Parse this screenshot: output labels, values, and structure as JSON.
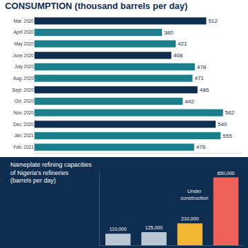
{
  "chart_data": [
    {
      "type": "bar",
      "title": "CONSUMPTION (thousand barrels per day)",
      "orientation": "horizontal",
      "categories": [
        "Mar. 2020",
        "April 2020",
        "May 2020",
        "June 2020",
        "July 2020",
        "Aug. 2020",
        "Sept. 2020",
        "Oct. 2020",
        "Nov. 2020",
        "Dec. 2020",
        "Jan. 2021",
        "Feb. 2021"
      ],
      "values": [
        512,
        380,
        421,
        408,
        478,
        471,
        486,
        442,
        562,
        540,
        555,
        476
      ],
      "colors": [
        "#0f2d4f",
        "#1b7f8c",
        "#1b7f8c",
        "#0f2d4f",
        "#1b7f8c",
        "#1b7f8c",
        "#0f2d4f",
        "#1b7f8c",
        "#1b7f8c",
        "#0f2d4f",
        "#1b7f8c",
        "#1b7f8c"
      ],
      "data_labels": true,
      "xlim": [
        0,
        620
      ],
      "xticks": [],
      "tick_labels": "y",
      "grid": false
    },
    {
      "type": "bar",
      "title": "Nameplate refining capacities\nof Nigeria's refineries\n(barrels per day)",
      "categories": [
        null,
        null,
        null,
        null
      ],
      "values": [
        110000,
        125000,
        210000,
        650000
      ],
      "value_labels": [
        "110,000",
        "125,000",
        "210,000",
        "650,000"
      ],
      "colors": [
        "#b9c7d6",
        "#b9c7d6",
        "#f2b632",
        "#f0615a"
      ],
      "data_labels": true,
      "annotations": [
        "Under\nconstruction"
      ],
      "ylim": [
        0,
        700000
      ],
      "yticks": [],
      "tick_labels": false,
      "grid": false
    }
  ]
}
